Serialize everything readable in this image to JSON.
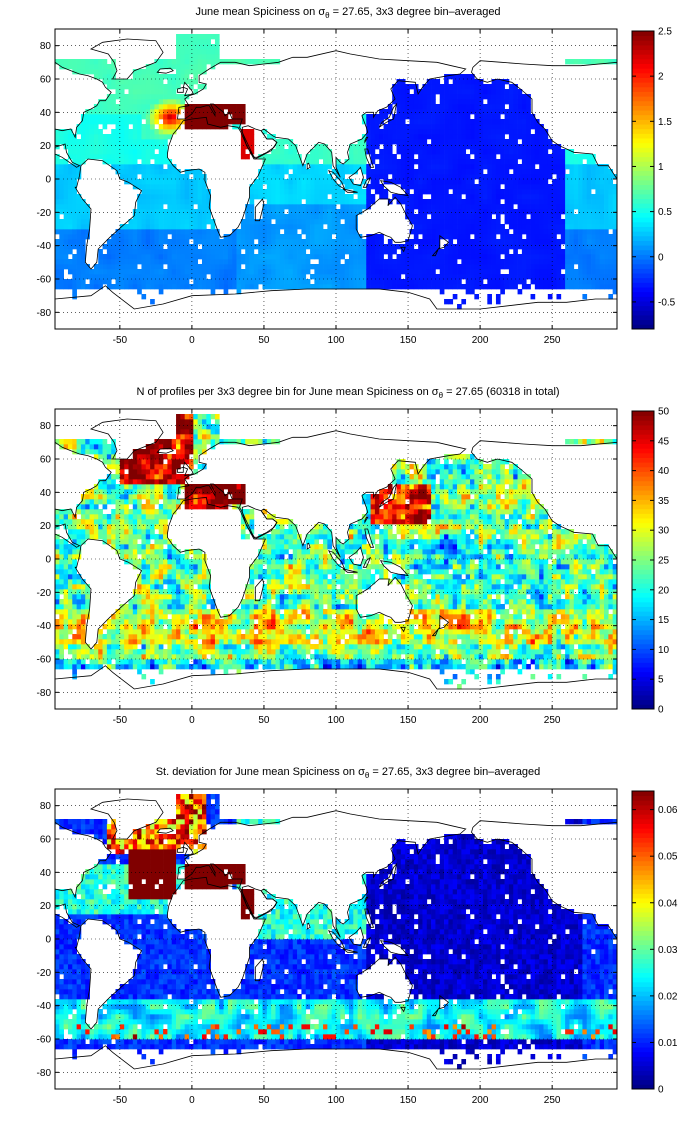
{
  "chart_data": [
    {
      "type": "heatmap",
      "title": {
        "pre": "June mean Spiciness on ",
        "symbol": "σ",
        "sub": "θ",
        "post": " = 27.65, 3x3 degree bin–averaged"
      },
      "xticks": [
        -50,
        0,
        50,
        100,
        150,
        200,
        250
      ],
      "yticks": [
        80,
        60,
        40,
        20,
        0,
        -20,
        -40,
        -60,
        -80
      ],
      "xlim": [
        -95,
        295
      ],
      "ylim": [
        -90,
        90
      ],
      "grid": true,
      "colorbar": {
        "ticks": [
          "2.5",
          "2",
          "1.5",
          "1",
          "0.5",
          "0",
          "-0.5"
        ],
        "tick_values": [
          2.5,
          2,
          1.5,
          1,
          0.5,
          0,
          -0.5
        ],
        "range": [
          -0.8,
          2.5
        ]
      },
      "field": "spice"
    },
    {
      "type": "heatmap",
      "title": {
        "pre": "N of profiles per 3x3 degree bin for June mean Spiciness on ",
        "symbol": "σ",
        "sub": "θ",
        "post": " = 27.65 (60318 in total)"
      },
      "xticks": [
        -50,
        0,
        50,
        100,
        150,
        200,
        250
      ],
      "yticks": [
        80,
        60,
        40,
        20,
        0,
        -20,
        -40,
        -60,
        -80
      ],
      "xlim": [
        -95,
        295
      ],
      "ylim": [
        -90,
        90
      ],
      "grid": true,
      "colorbar": {
        "ticks": [
          "50",
          "45",
          "40",
          "35",
          "30",
          "25",
          "20",
          "15",
          "10",
          "5",
          "0"
        ],
        "tick_values": [
          50,
          45,
          40,
          35,
          30,
          25,
          20,
          15,
          10,
          5,
          0
        ],
        "range": [
          0,
          50
        ]
      },
      "field": "count"
    },
    {
      "type": "heatmap",
      "title": {
        "pre": "St. deviation for June mean Spiciness on ",
        "symbol": "σ",
        "sub": "θ",
        "post": " = 27.65, 3x3 degree bin–averaged"
      },
      "xticks": [
        -50,
        0,
        50,
        100,
        150,
        200,
        250
      ],
      "yticks": [
        80,
        60,
        40,
        20,
        0,
        -20,
        -40,
        -60,
        -80
      ],
      "xlim": [
        -95,
        295
      ],
      "ylim": [
        -90,
        90
      ],
      "grid": true,
      "colorbar": {
        "ticks": [
          "0.06",
          "0.05",
          "0.04",
          "0.03",
          "0.02",
          "0.01",
          "0"
        ],
        "tick_values": [
          0.06,
          0.05,
          0.04,
          0.03,
          0.02,
          0.01,
          0
        ],
        "range": [
          0,
          0.064
        ]
      },
      "field": "std"
    }
  ]
}
